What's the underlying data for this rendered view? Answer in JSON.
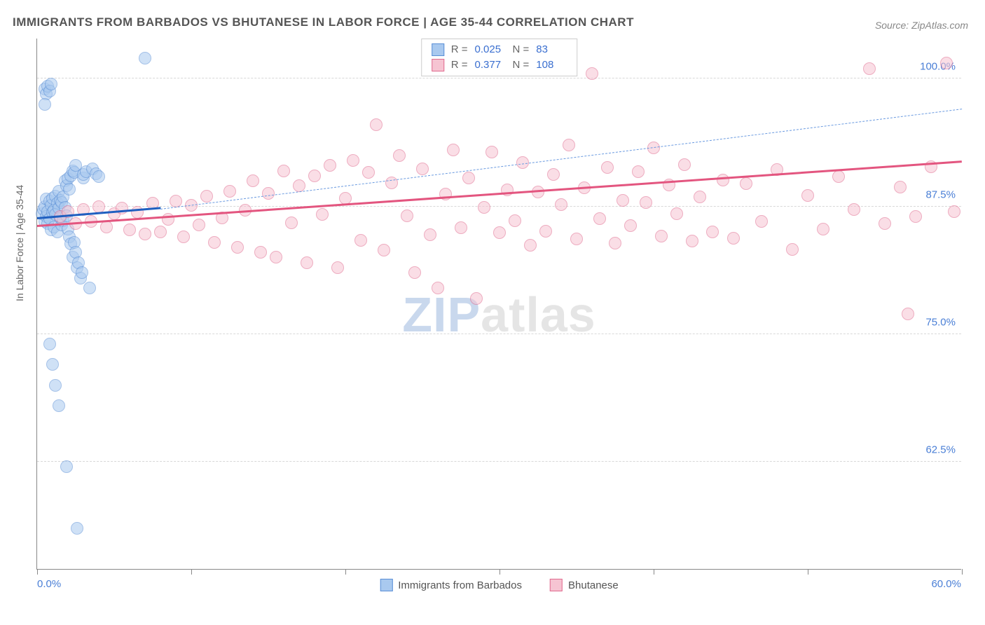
{
  "title": "IMMIGRANTS FROM BARBADOS VS BHUTANESE IN LABOR FORCE | AGE 35-44 CORRELATION CHART",
  "source": "Source: ZipAtlas.com",
  "y_axis_label": "In Labor Force | Age 35-44",
  "watermark_a": "ZIP",
  "watermark_b": "atlas",
  "chart": {
    "type": "scatter",
    "xlim": [
      0,
      60
    ],
    "ylim": [
      52,
      104
    ],
    "y_ticks": [
      62.5,
      75.0,
      87.5,
      100.0
    ],
    "y_tick_labels": [
      "62.5%",
      "75.0%",
      "87.5%",
      "100.0%"
    ],
    "x_ticks": [
      0,
      10,
      20,
      30,
      40,
      50,
      60
    ],
    "x_label_min": "0.0%",
    "x_label_max": "60.0%",
    "grid_color": "#d8d8d8",
    "axis_color": "#888888",
    "background_color": "#ffffff",
    "point_radius": 8,
    "point_opacity": 0.55
  },
  "series": [
    {
      "name": "Immigrants from Barbados",
      "legend_label": "Immigrants from Barbados",
      "fill": "#a9c9ef",
      "stroke": "#5a8fd6",
      "R": "0.025",
      "N": "83",
      "trend": {
        "x1": 0,
        "y1": 86.2,
        "x2": 8,
        "y2": 87.2,
        "color": "#1f5fc0",
        "width": 3,
        "dash": "none"
      },
      "trend_ext": {
        "x1": 8,
        "y1": 87.2,
        "x2": 60,
        "y2": 97.0,
        "color": "#6a9ae0",
        "width": 1.5,
        "dash": "6,5"
      },
      "points": [
        [
          0.3,
          86.8
        ],
        [
          0.4,
          87.2
        ],
        [
          0.5,
          86.0
        ],
        [
          0.5,
          87.5
        ],
        [
          0.6,
          88.2
        ],
        [
          0.6,
          86.5
        ],
        [
          0.7,
          87.0
        ],
        [
          0.7,
          85.8
        ],
        [
          0.8,
          88.0
        ],
        [
          0.8,
          86.3
        ],
        [
          0.9,
          87.6
        ],
        [
          0.9,
          85.2
        ],
        [
          1.0,
          86.9
        ],
        [
          1.0,
          88.3
        ],
        [
          1.1,
          87.1
        ],
        [
          1.1,
          85.5
        ],
        [
          1.2,
          88.5
        ],
        [
          1.2,
          86.7
        ],
        [
          1.3,
          87.8
        ],
        [
          1.3,
          85.0
        ],
        [
          1.4,
          87.3
        ],
        [
          1.4,
          89.0
        ],
        [
          1.5,
          86.4
        ],
        [
          1.5,
          88.1
        ],
        [
          1.6,
          87.9
        ],
        [
          1.6,
          85.7
        ],
        [
          1.7,
          86.1
        ],
        [
          1.7,
          88.4
        ],
        [
          1.8,
          87.4
        ],
        [
          1.8,
          90.0
        ],
        [
          1.9,
          89.5
        ],
        [
          1.9,
          86.6
        ],
        [
          2.0,
          90.2
        ],
        [
          2.0,
          85.3
        ],
        [
          2.1,
          89.2
        ],
        [
          2.1,
          84.5
        ],
        [
          2.2,
          90.5
        ],
        [
          2.2,
          83.8
        ],
        [
          2.3,
          91.0
        ],
        [
          2.3,
          82.5
        ],
        [
          2.4,
          90.8
        ],
        [
          2.4,
          84.0
        ],
        [
          2.5,
          91.5
        ],
        [
          2.5,
          83.0
        ],
        [
          2.6,
          81.5
        ],
        [
          2.7,
          82.0
        ],
        [
          2.8,
          80.5
        ],
        [
          2.9,
          81.0
        ],
        [
          3.0,
          90.3
        ],
        [
          3.0,
          90.6
        ],
        [
          3.2,
          90.9
        ],
        [
          3.4,
          79.5
        ],
        [
          3.6,
          91.2
        ],
        [
          3.8,
          90.7
        ],
        [
          4.0,
          90.4
        ],
        [
          0.5,
          99.0
        ],
        [
          0.6,
          98.5
        ],
        [
          0.7,
          99.3
        ],
        [
          0.8,
          98.8
        ],
        [
          0.9,
          99.5
        ],
        [
          0.5,
          97.5
        ],
        [
          0.8,
          74.0
        ],
        [
          1.0,
          72.0
        ],
        [
          1.2,
          70.0
        ],
        [
          1.4,
          68.0
        ],
        [
          1.9,
          62.0
        ],
        [
          2.6,
          56.0
        ],
        [
          7.0,
          102.0
        ]
      ]
    },
    {
      "name": "Bhutanese",
      "legend_label": "Bhutanese",
      "fill": "#f6c4d2",
      "stroke": "#e06a8e",
      "R": "0.377",
      "N": "108",
      "trend": {
        "x1": 0,
        "y1": 85.5,
        "x2": 60,
        "y2": 91.8,
        "color": "#e3557f",
        "width": 3,
        "dash": "none"
      },
      "points": [
        [
          1.5,
          86.5
        ],
        [
          2.0,
          87.0
        ],
        [
          2.5,
          85.8
        ],
        [
          3.0,
          87.2
        ],
        [
          3.5,
          86.0
        ],
        [
          4.0,
          87.5
        ],
        [
          4.5,
          85.5
        ],
        [
          5.0,
          86.8
        ],
        [
          5.5,
          87.3
        ],
        [
          6.0,
          85.2
        ],
        [
          6.5,
          86.9
        ],
        [
          7.0,
          84.8
        ],
        [
          7.5,
          87.8
        ],
        [
          8.0,
          85.0
        ],
        [
          8.5,
          86.2
        ],
        [
          9.0,
          88.0
        ],
        [
          9.5,
          84.5
        ],
        [
          10.0,
          87.6
        ],
        [
          10.5,
          85.7
        ],
        [
          11.0,
          88.5
        ],
        [
          11.5,
          84.0
        ],
        [
          12.0,
          86.4
        ],
        [
          12.5,
          89.0
        ],
        [
          13.0,
          83.5
        ],
        [
          13.5,
          87.1
        ],
        [
          14.0,
          90.0
        ],
        [
          14.5,
          83.0
        ],
        [
          15.0,
          88.8
        ],
        [
          15.5,
          82.5
        ],
        [
          16.0,
          91.0
        ],
        [
          16.5,
          85.9
        ],
        [
          17.0,
          89.5
        ],
        [
          17.5,
          82.0
        ],
        [
          18.0,
          90.5
        ],
        [
          18.5,
          86.7
        ],
        [
          19.0,
          91.5
        ],
        [
          19.5,
          81.5
        ],
        [
          20.0,
          88.3
        ],
        [
          20.5,
          92.0
        ],
        [
          21.0,
          84.2
        ],
        [
          21.5,
          90.8
        ],
        [
          22.0,
          95.5
        ],
        [
          22.5,
          83.2
        ],
        [
          23.0,
          89.8
        ],
        [
          23.5,
          92.5
        ],
        [
          24.0,
          86.6
        ],
        [
          24.5,
          81.0
        ],
        [
          25.0,
          91.2
        ],
        [
          25.5,
          84.7
        ],
        [
          26.0,
          79.5
        ],
        [
          26.5,
          88.7
        ],
        [
          27.0,
          93.0
        ],
        [
          27.5,
          85.4
        ],
        [
          28.0,
          90.3
        ],
        [
          28.5,
          78.5
        ],
        [
          29.0,
          87.4
        ],
        [
          29.5,
          92.8
        ],
        [
          30.0,
          84.9
        ],
        [
          30.5,
          89.1
        ],
        [
          31.0,
          86.1
        ],
        [
          31.5,
          91.8
        ],
        [
          32.0,
          83.7
        ],
        [
          32.5,
          88.9
        ],
        [
          33.0,
          85.1
        ],
        [
          33.5,
          90.6
        ],
        [
          34.0,
          87.7
        ],
        [
          34.5,
          93.5
        ],
        [
          35.0,
          84.3
        ],
        [
          35.5,
          89.3
        ],
        [
          36.0,
          100.5
        ],
        [
          36.5,
          86.3
        ],
        [
          37.0,
          91.3
        ],
        [
          37.5,
          83.9
        ],
        [
          38.0,
          88.1
        ],
        [
          38.5,
          85.6
        ],
        [
          39.0,
          90.9
        ],
        [
          39.5,
          87.9
        ],
        [
          40.0,
          93.2
        ],
        [
          40.5,
          84.6
        ],
        [
          41.0,
          89.6
        ],
        [
          41.5,
          86.8
        ],
        [
          42.0,
          91.6
        ],
        [
          42.5,
          84.1
        ],
        [
          43.0,
          88.4
        ],
        [
          43.8,
          85.0
        ],
        [
          44.5,
          90.1
        ],
        [
          45.2,
          84.4
        ],
        [
          46.0,
          89.7
        ],
        [
          47.0,
          86.0
        ],
        [
          48.0,
          91.1
        ],
        [
          49.0,
          83.3
        ],
        [
          50.0,
          88.6
        ],
        [
          51.0,
          85.3
        ],
        [
          52.0,
          90.4
        ],
        [
          53.0,
          87.2
        ],
        [
          54.0,
          101.0
        ],
        [
          55.0,
          85.8
        ],
        [
          56.0,
          89.4
        ],
        [
          56.5,
          77.0
        ],
        [
          57.0,
          86.5
        ],
        [
          58.0,
          91.4
        ],
        [
          59.0,
          101.5
        ],
        [
          59.5,
          87.0
        ]
      ]
    }
  ]
}
